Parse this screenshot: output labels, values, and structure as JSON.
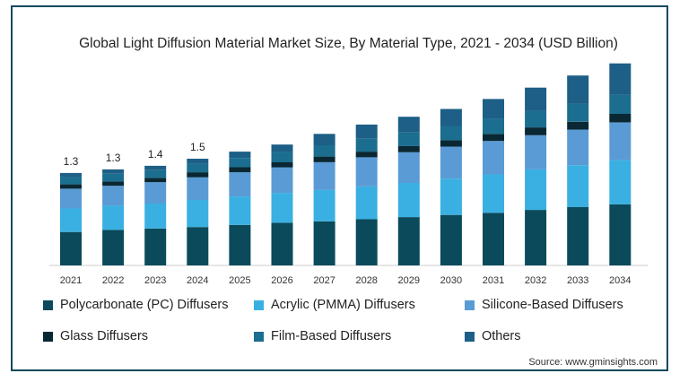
{
  "chart_data": {
    "type": "bar",
    "stacked": true,
    "title": "Global Light Diffusion Material Market Size, By Material Type, 2021 - 2034 (USD Billion)",
    "xlabel": "",
    "ylabel": "",
    "categories": [
      "2021",
      "2022",
      "2023",
      "2024",
      "2025",
      "2026",
      "2027",
      "2028",
      "2029",
      "2030",
      "2031",
      "2032",
      "2033",
      "2034"
    ],
    "totals_labeled": [
      "1.3",
      "1.3",
      "1.4",
      "1.5",
      null,
      null,
      null,
      null,
      null,
      null,
      null,
      null,
      null,
      null
    ],
    "totals": [
      1.3,
      1.35,
      1.4,
      1.5,
      1.6,
      1.7,
      1.85,
      1.98,
      2.09,
      2.2,
      2.34,
      2.5,
      2.67,
      2.84
    ],
    "series": [
      {
        "name": "Polycarbonate (PC) Diffusers",
        "color": "#0b4a5b",
        "values": [
          0.47,
          0.5,
          0.52,
          0.54,
          0.57,
          0.6,
          0.62,
          0.65,
          0.68,
          0.71,
          0.74,
          0.78,
          0.82,
          0.86
        ]
      },
      {
        "name": "Acrylic (PMMA) Diffusers",
        "color": "#3ab0e2",
        "values": [
          0.33,
          0.34,
          0.35,
          0.38,
          0.4,
          0.42,
          0.44,
          0.46,
          0.48,
          0.51,
          0.54,
          0.57,
          0.59,
          0.62
        ]
      },
      {
        "name": "Silicone-Based Diffusers",
        "color": "#5a9bd5",
        "values": [
          0.28,
          0.28,
          0.3,
          0.32,
          0.34,
          0.36,
          0.39,
          0.41,
          0.43,
          0.45,
          0.47,
          0.48,
          0.5,
          0.53
        ]
      },
      {
        "name": "Glass Diffusers",
        "color": "#0a2833",
        "values": [
          0.06,
          0.06,
          0.06,
          0.07,
          0.07,
          0.07,
          0.08,
          0.08,
          0.09,
          0.09,
          0.1,
          0.11,
          0.11,
          0.12
        ]
      },
      {
        "name": "Film-Based Diffusers",
        "color": "#1b6e8f",
        "values": [
          0.1,
          0.11,
          0.11,
          0.12,
          0.13,
          0.14,
          0.16,
          0.18,
          0.19,
          0.2,
          0.21,
          0.23,
          0.25,
          0.27
        ]
      },
      {
        "name": "Others",
        "color": "#1d5f86",
        "values": [
          0.06,
          0.06,
          0.06,
          0.07,
          0.09,
          0.11,
          0.16,
          0.2,
          0.22,
          0.24,
          0.28,
          0.33,
          0.4,
          0.44
        ]
      }
    ],
    "ylim": [
      0,
      2.95
    ],
    "grid": false,
    "legend_position": "bottom"
  },
  "source": "Source: www.gminsights.com"
}
